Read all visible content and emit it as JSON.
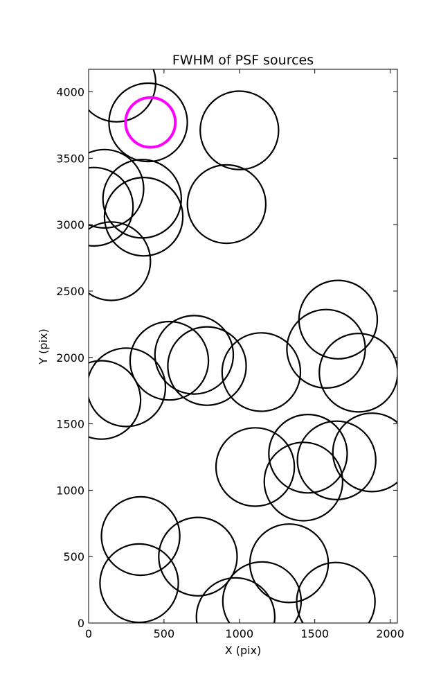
{
  "chart_data": {
    "type": "scatter",
    "title": "FWHM of PSF sources",
    "xlabel": "X (pix)",
    "ylabel": "Y (pix)",
    "xlim": [
      0,
      2048
    ],
    "ylim": [
      0,
      4170
    ],
    "xticks": [
      0,
      500,
      1000,
      1500,
      2000
    ],
    "yticks": [
      0,
      500,
      1000,
      1500,
      2000,
      2500,
      3000,
      3500,
      4000
    ],
    "grid": false,
    "marker": "open-circle",
    "marker_color": "#000000",
    "highlight_color": "#ff00ff",
    "points": [
      {
        "x": 185,
        "y": 4070,
        "r": 260
      },
      {
        "x": 395,
        "y": 3770,
        "r": 260
      },
      {
        "x": 1000,
        "y": 3710,
        "r": 260
      },
      {
        "x": 105,
        "y": 3270,
        "r": 260
      },
      {
        "x": 35,
        "y": 3135,
        "r": 260
      },
      {
        "x": 355,
        "y": 3195,
        "r": 260
      },
      {
        "x": 365,
        "y": 3060,
        "r": 260
      },
      {
        "x": 915,
        "y": 3155,
        "r": 260
      },
      {
        "x": 150,
        "y": 2725,
        "r": 260
      },
      {
        "x": 1655,
        "y": 2285,
        "r": 260
      },
      {
        "x": 1575,
        "y": 2065,
        "r": 260
      },
      {
        "x": 1790,
        "y": 1885,
        "r": 260
      },
      {
        "x": 700,
        "y": 2020,
        "r": 260
      },
      {
        "x": 535,
        "y": 1975,
        "r": 260
      },
      {
        "x": 785,
        "y": 1935,
        "r": 260
      },
      {
        "x": 1145,
        "y": 1890,
        "r": 260
      },
      {
        "x": 250,
        "y": 1775,
        "r": 260
      },
      {
        "x": 85,
        "y": 1680,
        "r": 260
      },
      {
        "x": 1455,
        "y": 1275,
        "r": 260
      },
      {
        "x": 1645,
        "y": 1225,
        "r": 260
      },
      {
        "x": 1880,
        "y": 1285,
        "r": 260
      },
      {
        "x": 1105,
        "y": 1175,
        "r": 260
      },
      {
        "x": 1425,
        "y": 1065,
        "r": 260
      },
      {
        "x": 345,
        "y": 655,
        "r": 260
      },
      {
        "x": 725,
        "y": 500,
        "r": 260
      },
      {
        "x": 1330,
        "y": 450,
        "r": 260
      },
      {
        "x": 335,
        "y": 300,
        "r": 260
      },
      {
        "x": 1150,
        "y": 165,
        "r": 260
      },
      {
        "x": 1640,
        "y": 160,
        "r": 260
      },
      {
        "x": 975,
        "y": 45,
        "r": 260
      }
    ],
    "highlight": {
      "x": 410,
      "y": 3770,
      "r": 165
    }
  }
}
